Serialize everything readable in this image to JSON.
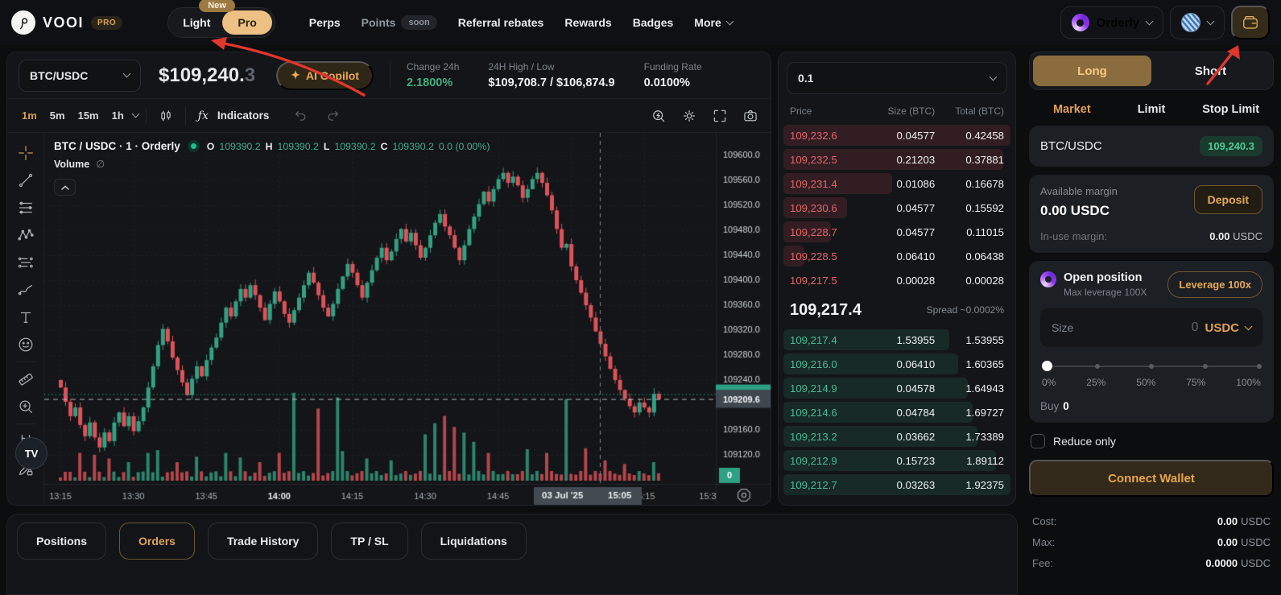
{
  "nav": {
    "brand": "VOOI",
    "brand_badge": "PRO",
    "mode_toggle": {
      "new_badge": "New",
      "light": "Light",
      "pro": "Pro"
    },
    "items": [
      {
        "label": "Perps",
        "active": true
      },
      {
        "label": "Points",
        "dim": true,
        "badge": "soon"
      },
      {
        "label": "Referral rebates"
      },
      {
        "label": "Rewards"
      },
      {
        "label": "Badges"
      },
      {
        "label": "More",
        "chevron": true
      }
    ],
    "broker_label": "Orderly"
  },
  "market_bar": {
    "pair_selector": "BTC/USDC",
    "price_int": "$109,240.",
    "price_dec": "3",
    "copilot_sparkle": "✦",
    "copilot_label": "AI Copilot",
    "stats": [
      {
        "label": "Change 24h",
        "value": "2.1800%",
        "color": "#3fae7f"
      },
      {
        "label": "24H High / Low",
        "value": "$109,708.7 / $106,874.9",
        "color": "#eef0f3"
      },
      {
        "label": "Funding Rate",
        "value": "0.0100%",
        "color": "#eef0f3"
      }
    ]
  },
  "chart_toolbar": {
    "timeframes": [
      "1m",
      "5m",
      "15m",
      "1h"
    ],
    "active_timeframe": "1m",
    "fx_label": "ƒx",
    "indicators_label": "Indicators"
  },
  "chart_legend": {
    "symbol": "BTC / USDC · 1 · Orderly",
    "o_label": "O",
    "o": "109390.2",
    "h_label": "H",
    "h": "109390.2",
    "l_label": "L",
    "l": "109390.2",
    "c_label": "C",
    "c": "109390.2",
    "change": "0.0 (0.00%)",
    "volume_label": "Volume",
    "volume_hidden_icon": "∅",
    "tv_logo": "TV"
  },
  "chart_data": {
    "type": "candlestick",
    "symbol": "BTC/USDC",
    "interval": "1m",
    "start_time": "13:14",
    "first_open": 109240,
    "closes": [
      109228,
      109205,
      109182,
      109196,
      109168,
      109150,
      109172,
      109148,
      109132,
      109156,
      109142,
      109172,
      109188,
      109166,
      109182,
      109158,
      109174,
      109196,
      109228,
      109262,
      109296,
      109322,
      109302,
      109276,
      109256,
      109236,
      109216,
      109242,
      109262,
      109246,
      109272,
      109292,
      109308,
      109332,
      109356,
      109342,
      109366,
      109386,
      109372,
      109392,
      109376,
      109356,
      109336,
      109362,
      109382,
      109366,
      109346,
      109332,
      109352,
      109372,
      109392,
      109412,
      109396,
      109376,
      109356,
      109342,
      109362,
      109386,
      109406,
      109426,
      109412,
      109392,
      109372,
      109396,
      109416,
      109436,
      109452,
      109432,
      109446,
      109466,
      109482,
      109462,
      109476,
      109456,
      109436,
      109452,
      109472,
      109492,
      109506,
      109486,
      109472,
      109452,
      109432,
      109456,
      109482,
      109502,
      109522,
      109542,
      109526,
      109546,
      109562,
      109572,
      109556,
      109566,
      109552,
      109532,
      109546,
      109562,
      109572,
      109556,
      109536,
      109512,
      109482,
      109452,
      109458,
      109422,
      109400,
      109380,
      109360,
      109340,
      109318,
      109298,
      109278,
      109258,
      109240,
      109224,
      109210,
      109198,
      109188,
      109204,
      109196,
      109188,
      109218,
      109209.6
    ],
    "volume_base": 0.07,
    "volume_spikes": {
      "4": 0.3,
      "7": 0.28,
      "10": 0.24,
      "14": 0.2,
      "18": 0.3,
      "20": 0.33,
      "24": 0.2,
      "28": 0.26,
      "34": 0.3,
      "37": 0.25,
      "41": 0.2,
      "45": 0.3,
      "48": 0.95,
      "53": 0.78,
      "57": 0.9,
      "58": 0.32,
      "63": 0.24,
      "68": 0.22,
      "75": 0.5,
      "77": 0.62,
      "79": 0.7,
      "81": 0.58,
      "83": 0.52,
      "85": 0.42,
      "88": 0.3,
      "96": 0.34,
      "100": 0.3,
      "104": 0.88,
      "108": 0.35,
      "112": 0.22,
      "116": 0.18,
      "122": 0.2
    },
    "y_ticks": [
      109600,
      109560,
      109520,
      109480,
      109440,
      109400,
      109360,
      109320,
      109280,
      109240,
      109160,
      109120
    ],
    "ylim": [
      109080,
      109636
    ],
    "time_labels": [
      {
        "label": "13:15",
        "min": 1
      },
      {
        "label": "13:30",
        "min": 16
      },
      {
        "label": "13:45",
        "min": 31
      },
      {
        "label": "14:00",
        "min": 46,
        "bold": true
      },
      {
        "label": "14:15",
        "min": 61
      },
      {
        "label": "14:30",
        "min": 76
      },
      {
        "label": "14:45",
        "min": 91
      },
      {
        "label": "15:00",
        "min": 106
      },
      {
        "label": "15:15",
        "min": 121
      },
      {
        "label": "15:3",
        "min": 136
      }
    ],
    "last_price": "109209.6",
    "last_price_value": 109209.6,
    "last_trade_value": 109217.4,
    "crosshair": {
      "min": 111,
      "date": "03 Jul '25",
      "time": "15:05"
    },
    "volume_axis_zero": "0",
    "colors": {
      "up": "#33a183",
      "down": "#dd535a",
      "grid": "rgba(255,255,255,0.05)"
    }
  },
  "order_book": {
    "grouping": "0.1",
    "headers": [
      "Price",
      "Size (BTC)",
      "Total (BTC)"
    ],
    "asks": [
      {
        "price": "109,232.6",
        "size": "0.04577",
        "total": "0.42458",
        "depth": 1.0
      },
      {
        "price": "109,232.5",
        "size": "0.21203",
        "total": "0.37881",
        "depth": 0.97
      },
      {
        "price": "109,231.4",
        "size": "0.01086",
        "total": "0.16678",
        "depth": 0.5
      },
      {
        "price": "109,230.6",
        "size": "0.04577",
        "total": "0.15592",
        "depth": 0.31
      },
      {
        "price": "109,228.7",
        "size": "0.04577",
        "total": "0.11015",
        "depth": 0.24
      },
      {
        "price": "109,228.5",
        "size": "0.06410",
        "total": "0.06438",
        "depth": 0.13
      },
      {
        "price": "109,217.5",
        "size": "0.00028",
        "total": "0.00028",
        "depth": 0.0
      }
    ],
    "mid_price": "109,217.4",
    "spread": "Spread ~0.0002%",
    "bids": [
      {
        "price": "109,217.4",
        "size": "1.53955",
        "total": "1.53955",
        "depth": 0.74
      },
      {
        "price": "109,216.0",
        "size": "0.06410",
        "total": "1.60365",
        "depth": 0.78
      },
      {
        "price": "109,214.9",
        "size": "0.04578",
        "total": "1.64943",
        "depth": 0.82
      },
      {
        "price": "109,214.6",
        "size": "0.04784",
        "total": "1.69727",
        "depth": 0.84
      },
      {
        "price": "109,213.2",
        "size": "0.03662",
        "total": "1.73389",
        "depth": 0.86
      },
      {
        "price": "109,212.9",
        "size": "0.15723",
        "total": "1.89112",
        "depth": 0.94
      },
      {
        "price": "109,212.7",
        "size": "0.03263",
        "total": "1.92375",
        "depth": 1.0
      }
    ]
  },
  "trade_panel": {
    "side_tabs": [
      {
        "label": "Long",
        "active": true
      },
      {
        "label": "Short",
        "active": false
      }
    ],
    "order_types": [
      {
        "label": "Market",
        "active": true
      },
      {
        "label": "Limit"
      },
      {
        "label": "Stop Limit"
      }
    ],
    "pair_row": {
      "pair": "BTC/USDC",
      "price_badge": "109,240.3"
    },
    "margin": {
      "available_label": "Available margin",
      "available_value": "0.00 USDC",
      "deposit_label": "Deposit",
      "inuse_label": "In-use margin:",
      "inuse_value": "0.00",
      "inuse_unit": "USDC"
    },
    "open_position": {
      "title": "Open position",
      "subtitle": "Max leverage 100X",
      "leverage_button": "Leverage 100x",
      "size_label": "Size",
      "size_value": "0",
      "size_currency": "USDC",
      "slider_labels": [
        "0%",
        "25%",
        "50%",
        "75%",
        "100%"
      ],
      "slider_value_pct": 0,
      "buy_label": "Buy",
      "buy_value": "0"
    },
    "reduce_only_label": "Reduce only",
    "reduce_only_checked": false,
    "connect_wallet_label": "Connect Wallet",
    "summary": [
      {
        "label": "Cost:",
        "value": "0.00",
        "unit": "USDC"
      },
      {
        "label": "Max:",
        "value": "0.00",
        "unit": "USDC"
      },
      {
        "label": "Fee:",
        "value": "0.0000",
        "unit": "USDC"
      }
    ]
  },
  "bottom_tabs": [
    {
      "label": "Positions"
    },
    {
      "label": "Orders",
      "active": true
    },
    {
      "label": "Trade History"
    },
    {
      "label": "TP / SL"
    },
    {
      "label": "Liquidations"
    }
  ],
  "left_tools": [
    "crosshair",
    "trend-line",
    "fib-retracement",
    "xabcd-pattern",
    "long-short-position",
    "brush",
    "text",
    "emoji",
    "measure",
    "zoom-in",
    "magnet",
    "drawings-lock"
  ],
  "header_tools": [
    "search",
    "settings",
    "fullscreen",
    "snapshot"
  ]
}
